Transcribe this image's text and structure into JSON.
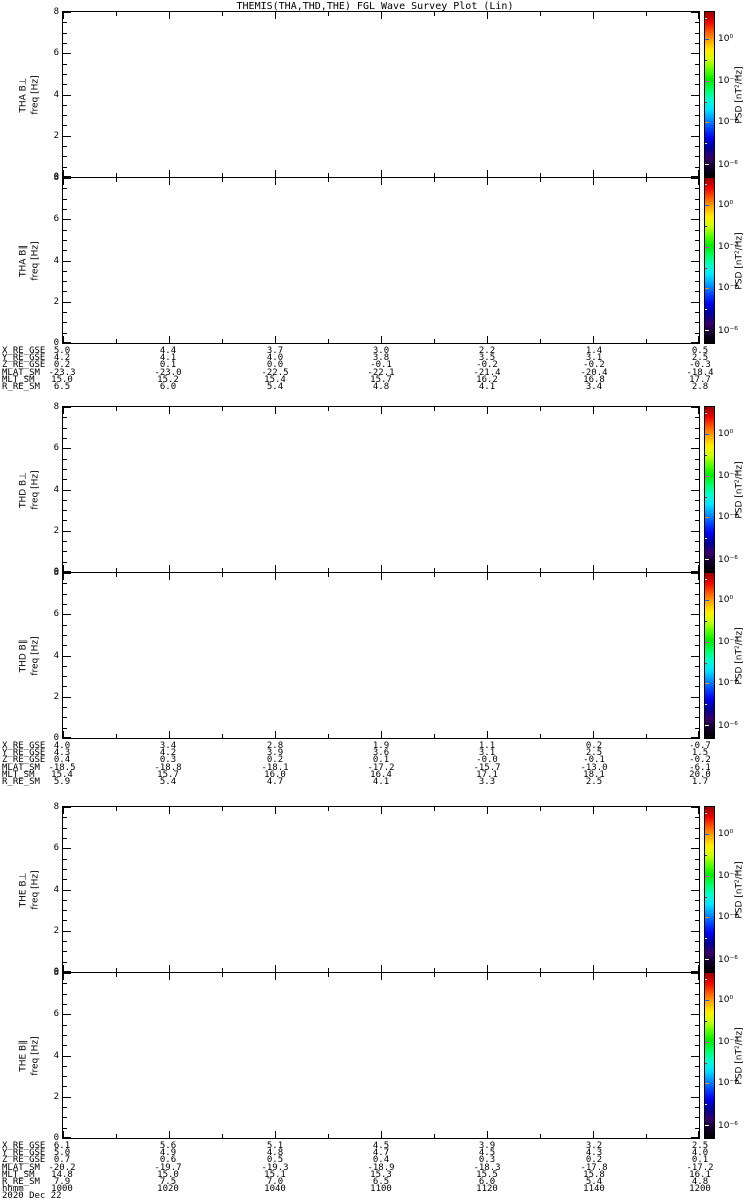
{
  "title": "THEMIS(THA,THD,THE) FGL Wave Survey Plot (Lin)",
  "date_label": "2020 Dec 22",
  "y_axis": {
    "label": "freq [Hz]",
    "ticks": [
      "8",
      "6",
      "4",
      "2",
      "0"
    ]
  },
  "time_row": {
    "label": "hhmm",
    "values": [
      "1000",
      "1020",
      "1040",
      "1100",
      "1120",
      "1140",
      "1200"
    ]
  },
  "colorbar": {
    "title": "PSD [nT²/Hz]",
    "ticks": [
      "10⁰",
      "10⁻²",
      "10⁻⁴",
      "10⁻⁶"
    ],
    "colormap": "rainbow",
    "colors_top_to_bottom": [
      "#990000",
      "#ee0000",
      "#ff5500",
      "#ffaa00",
      "#ffee00",
      "#ccff00",
      "#55ff00",
      "#00ee00",
      "#00ff66",
      "#00ffcc",
      "#00e5ff",
      "#0099ff",
      "#0044ff",
      "#0000ee",
      "#000099",
      "#38006b",
      "#12002a",
      "#000000"
    ]
  },
  "groups": [
    {
      "spacecraft": "THA",
      "panels": [
        {
          "label": "THA B⊥"
        },
        {
          "label": "THA B∥"
        }
      ],
      "ephemeris": {
        "rows": [
          {
            "label": "X_RE_GSE",
            "values": [
              "5.0",
              "4.4",
              "3.7",
              "3.0",
              "2.2",
              "1.4",
              "0.5"
            ]
          },
          {
            "label": "Y_RE_GSE",
            "values": [
              "4.2",
              "4.1",
              "4.0",
              "3.8",
              "3.5",
              "3.1",
              "2.5"
            ]
          },
          {
            "label": "Z_RE_GSE",
            "values": [
              "0.2",
              "0.1",
              "0.0",
              "-0.1",
              "-0.2",
              "-0.2",
              "-0.3"
            ]
          },
          {
            "label": "MLAT_SM",
            "values": [
              "-23.3",
              "-23.0",
              "-22.5",
              "-22.1",
              "-21.4",
              "-20.4",
              "-18.4"
            ]
          },
          {
            "label": "MLT_SM",
            "values": [
              "15.0",
              "15.2",
              "15.4",
              "15.7",
              "16.2",
              "16.8",
              "17.7"
            ]
          },
          {
            "label": "R_RE_SM",
            "values": [
              "6.5",
              "6.0",
              "5.4",
              "4.8",
              "4.1",
              "3.4",
              "2.8"
            ]
          }
        ]
      }
    },
    {
      "spacecraft": "THD",
      "panels": [
        {
          "label": "THD B⊥"
        },
        {
          "label": "THD B∥"
        }
      ],
      "ephemeris": {
        "rows": [
          {
            "label": "X_RE_GSE",
            "values": [
              "4.0",
              "3.4",
              "2.8",
              "1.9",
              "1.1",
              "0.2",
              "-0.7"
            ]
          },
          {
            "label": "Y_RE_GSE",
            "values": [
              "4.3",
              "4.2",
              "3.9",
              "3.6",
              "3.1",
              "2.5",
              "1.5"
            ]
          },
          {
            "label": "Z_RE_GSE",
            "values": [
              "0.4",
              "0.3",
              "0.2",
              "0.1",
              "-0.0",
              "-0.1",
              "-0.2"
            ]
          },
          {
            "label": "MLAT_SM",
            "values": [
              "-18.5",
              "-18.8",
              "-18.1",
              "-17.2",
              "-15.7",
              "-13.0",
              "-6.1"
            ]
          },
          {
            "label": "MLT_SM",
            "values": [
              "15.4",
              "15.7",
              "16.0",
              "16.4",
              "17.1",
              "18.1",
              "20.0"
            ]
          },
          {
            "label": "R_RE_SM",
            "values": [
              "5.9",
              "5.4",
              "4.7",
              "4.1",
              "3.3",
              "2.5",
              "1.7"
            ]
          }
        ]
      }
    },
    {
      "spacecraft": "THE",
      "panels": [
        {
          "label": "THE B⊥"
        },
        {
          "label": "THE B∥"
        }
      ],
      "ephemeris": {
        "rows": [
          {
            "label": "X_RE_GSE",
            "values": [
              "6.1",
              "5.6",
              "5.1",
              "4.5",
              "3.9",
              "3.2",
              "2.5"
            ]
          },
          {
            "label": "Y_RE_GSE",
            "values": [
              "5.0",
              "4.9",
              "4.8",
              "4.7",
              "4.5",
              "4.3",
              "4.0"
            ]
          },
          {
            "label": "Z_RE_GSE",
            "values": [
              "0.7",
              "0.6",
              "0.5",
              "0.4",
              "0.3",
              "0.2",
              "0.1"
            ]
          },
          {
            "label": "MLAT_SM",
            "values": [
              "-20.2",
              "-19.7",
              "-19.3",
              "-18.9",
              "-18.3",
              "-17.8",
              "-17.2"
            ]
          },
          {
            "label": "MLT_SM",
            "values": [
              "14.8",
              "15.0",
              "15.1",
              "15.3",
              "15.5",
              "15.8",
              "16.1"
            ]
          },
          {
            "label": "R_RE_SM",
            "values": [
              "7.9",
              "7.5",
              "7.0",
              "6.5",
              "6.0",
              "5.4",
              "4.8"
            ]
          }
        ]
      }
    }
  ],
  "chart_data": {
    "type": "heatmap",
    "title": "THEMIS(THA,THD,THE) FGL Wave Survey Plot (Lin)",
    "panels": [
      {
        "name": "THA B⊥",
        "ylabel": "freq [Hz]",
        "ylim": [
          0,
          8
        ],
        "values": [],
        "note": "blank panel - no spectral data plotted"
      },
      {
        "name": "THA B∥",
        "ylabel": "freq [Hz]",
        "ylim": [
          0,
          8
        ],
        "values": [],
        "note": "blank panel - no spectral data plotted"
      },
      {
        "name": "THD B⊥",
        "ylabel": "freq [Hz]",
        "ylim": [
          0,
          8
        ],
        "values": [],
        "note": "blank panel - no spectral data plotted"
      },
      {
        "name": "THD B∥",
        "ylabel": "freq [Hz]",
        "ylim": [
          0,
          8
        ],
        "values": [],
        "note": "blank panel - no spectral data plotted"
      },
      {
        "name": "THE B⊥",
        "ylabel": "freq [Hz]",
        "ylim": [
          0,
          8
        ],
        "values": [],
        "note": "blank panel - no spectral data plotted"
      },
      {
        "name": "THE B∥",
        "ylabel": "freq [Hz]",
        "ylim": [
          0,
          8
        ],
        "values": [],
        "note": "blank panel - no spectral data plotted"
      }
    ],
    "x": {
      "label": "hhmm",
      "ticks": [
        "1000",
        "1020",
        "1040",
        "1100",
        "1120",
        "1140",
        "1200"
      ],
      "date": "2020 Dec 22"
    },
    "colorbar": {
      "label": "PSD [nT²/Hz]",
      "tick_labels": [
        "10⁰",
        "10⁻²",
        "10⁻⁴",
        "10⁻⁶"
      ],
      "orientation": "vertical",
      "colormap": "rainbow"
    },
    "grid": false,
    "legend": "none"
  }
}
